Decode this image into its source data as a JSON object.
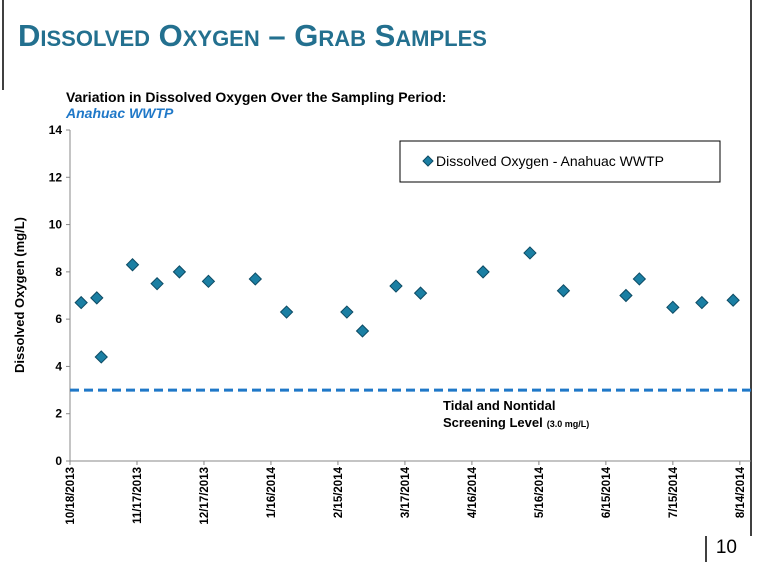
{
  "slide_title": "Dissolved Oxygen – Grab Samples",
  "page_number": "10",
  "chart_data": {
    "type": "scatter",
    "title": "Variation in Dissolved Oxygen Over the Sampling Period:",
    "subtitle": "Anahuac WWTP",
    "y_label": "Dissolved Oxygen (mg/L)",
    "series": [
      {
        "name": "Dissolved Oxygen - Anahuac WWTP",
        "color": "#1b7fa3",
        "x": [
          "10/23/2013",
          "10/30/2013",
          "11/1/2013",
          "11/15/2013",
          "11/26/2013",
          "12/6/2013",
          "12/19/2013",
          "1/9/2014",
          "1/23/2014",
          "2/19/2014",
          "2/26/2014",
          "3/13/2014",
          "3/24/2014",
          "4/21/2014",
          "5/12/2014",
          "5/27/2014",
          "6/24/2014",
          "6/30/2014",
          "7/15/2014",
          "7/28/2014",
          "8/11/2014"
        ],
        "values": [
          6.7,
          6.9,
          4.4,
          8.3,
          7.5,
          8.0,
          7.6,
          7.7,
          6.3,
          6.3,
          5.5,
          7.4,
          7.1,
          8.0,
          8.8,
          7.2,
          7.0,
          7.7,
          6.5,
          6.7,
          6.8
        ]
      }
    ],
    "xlim": [
      "10/18/2013",
      "8/19/2014"
    ],
    "xticks": [
      "10/18/2013",
      "11/17/2013",
      "12/17/2013",
      "1/16/2014",
      "2/15/2014",
      "3/17/2014",
      "4/16/2014",
      "5/16/2014",
      "6/15/2014",
      "7/15/2014",
      "8/14/2014"
    ],
    "ylim": [
      0,
      14
    ],
    "yticks": [
      0,
      2,
      4,
      6,
      8,
      10,
      12,
      14
    ],
    "grid": false,
    "legend": "top-right",
    "reference_line": {
      "value": 3,
      "color": "#1f78c8",
      "label": [
        "Tidal and Nontidal",
        "Screening Level"
      ],
      "value_label": "(3.0 mg/L)"
    }
  }
}
